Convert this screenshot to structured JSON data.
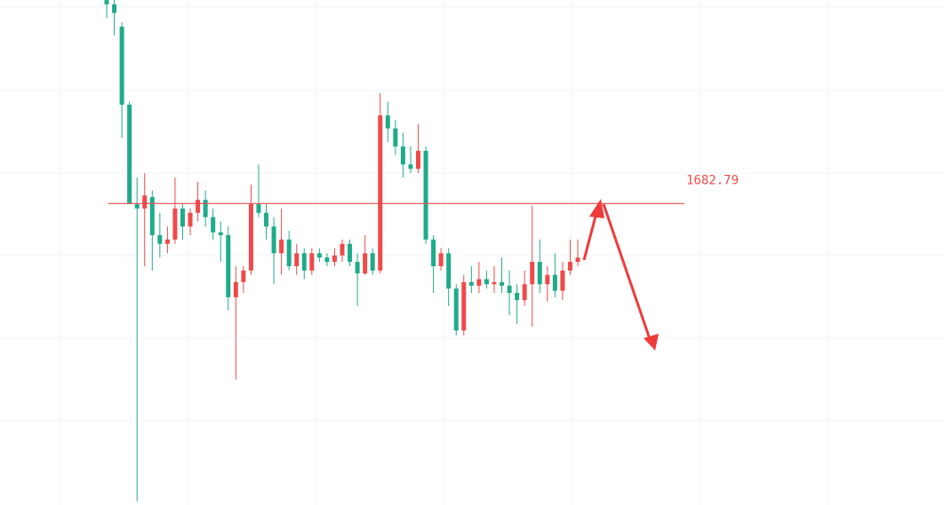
{
  "chart_data": {
    "type": "candlestick",
    "ylim": [
      1641,
      1711
    ],
    "up_color": "#ef4a4a",
    "down_color": "#1fab89",
    "level": 1682.79,
    "level_color": "#ef4a4a",
    "open": [
      1711.0,
      1710.4,
      1707.3,
      1696.5,
      1682.7,
      1682.1,
      1683.7,
      1678.4,
      1677.2,
      1677.8,
      1682.1,
      1679.6,
      1681.5,
      1683.3,
      1680.9,
      1678.8,
      1678.4,
      1669.8,
      1671.9,
      1673.5,
      1682.7,
      1681.5,
      1679.6,
      1675.9,
      1677.8,
      1674.1,
      1675.9,
      1673.5,
      1675.9,
      1675.3,
      1674.7,
      1675.6,
      1677.2,
      1674.7,
      1673.1,
      1675.9,
      1673.5,
      1695.0,
      1693.2,
      1690.7,
      1688.2,
      1687.6,
      1690.1,
      1677.8,
      1674.1,
      1675.9,
      1671.0,
      1665.2,
      1671.9,
      1671.4,
      1672.3,
      1671.6,
      1671.9,
      1671.4,
      1670.4,
      1669.4,
      1671.6,
      1674.7,
      1671.6,
      1672.9,
      1670.7,
      1673.5,
      1674.7
    ],
    "high": [
      1711.0,
      1711.0,
      1707.9,
      1696.9,
      1686.4,
      1687.0,
      1684.6,
      1681.5,
      1679.6,
      1686.4,
      1682.7,
      1682.1,
      1685.8,
      1684.6,
      1682.1,
      1680.3,
      1679.6,
      1674.1,
      1674.1,
      1685.4,
      1688.2,
      1682.7,
      1680.9,
      1682.1,
      1679.0,
      1677.2,
      1676.6,
      1676.6,
      1676.6,
      1675.9,
      1676.6,
      1677.8,
      1677.8,
      1675.9,
      1678.4,
      1676.6,
      1698.1,
      1696.9,
      1694.4,
      1692.6,
      1690.7,
      1693.8,
      1690.7,
      1678.4,
      1676.6,
      1676.6,
      1671.6,
      1672.9,
      1674.1,
      1674.7,
      1673.5,
      1674.1,
      1675.3,
      1673.5,
      1671.6,
      1673.5,
      1682.5,
      1677.8,
      1674.1,
      1675.9,
      1674.7,
      1677.8,
      1677.8
    ],
    "low": [
      1708.5,
      1706.1,
      1691.9,
      1682.7,
      1641.5,
      1674.1,
      1673.5,
      1675.3,
      1675.9,
      1677.2,
      1677.8,
      1678.4,
      1680.3,
      1679.6,
      1677.8,
      1674.7,
      1668.0,
      1658.4,
      1670.4,
      1672.9,
      1680.9,
      1677.8,
      1671.6,
      1672.9,
      1673.5,
      1672.9,
      1672.3,
      1672.9,
      1674.7,
      1674.1,
      1674.1,
      1674.7,
      1674.1,
      1668.6,
      1672.9,
      1672.9,
      1673.1,
      1691.3,
      1689.5,
      1686.4,
      1687.0,
      1687.0,
      1677.2,
      1670.4,
      1673.5,
      1668.6,
      1664.5,
      1664.5,
      1670.4,
      1670.4,
      1671.0,
      1670.4,
      1670.4,
      1667.3,
      1666.1,
      1668.6,
      1665.7,
      1670.4,
      1669.2,
      1669.8,
      1669.4,
      1672.9,
      1674.1
    ],
    "close": [
      1710.4,
      1709.2,
      1696.5,
      1682.7,
      1682.1,
      1683.9,
      1678.4,
      1677.2,
      1677.8,
      1682.1,
      1679.6,
      1681.5,
      1683.3,
      1680.9,
      1678.8,
      1678.4,
      1669.8,
      1671.9,
      1673.5,
      1682.7,
      1681.5,
      1679.6,
      1675.9,
      1677.8,
      1674.1,
      1675.9,
      1673.5,
      1675.9,
      1675.3,
      1674.7,
      1675.6,
      1677.2,
      1674.7,
      1673.1,
      1675.9,
      1673.5,
      1695.0,
      1693.2,
      1690.7,
      1688.2,
      1687.6,
      1690.1,
      1677.8,
      1674.1,
      1675.9,
      1671.0,
      1665.2,
      1671.9,
      1671.4,
      1672.3,
      1671.6,
      1671.9,
      1671.4,
      1670.4,
      1669.4,
      1671.6,
      1674.7,
      1671.6,
      1672.9,
      1670.7,
      1673.5,
      1674.7,
      1675.3
    ],
    "grid": true
  }
}
